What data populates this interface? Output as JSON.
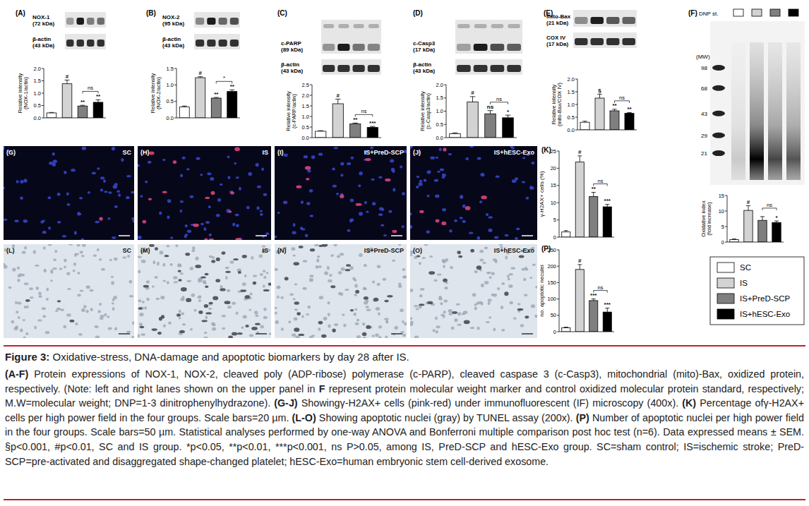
{
  "figure": {
    "label": "Figure 3:",
    "title": " Oxidative-stress, DNA-damage and apoptotic biomarkers by day 28 after IS.",
    "caption": [
      {
        "text": "(A-F)",
        "bold": true
      },
      {
        "text": " Protein expressions of NOX-1, NOX-2, cleaved poly (ADP-ribose) polymerase (c-PARP), cleaved caspase 3 (c-Casp3), mitochondrial (mito)-Bax, oxidized protein, respectively. (Note: left and right lanes shown on the upper panel in ",
        "bold": false
      },
      {
        "text": "F",
        "bold": true
      },
      {
        "text": " represent protein molecular weight marker and control oxidized molecular protein standard, respectively; M.W=molecular weight; DNP=1-3 dinitrophenylhydrazone). ",
        "bold": false
      },
      {
        "text": "(G-J)",
        "bold": true
      },
      {
        "text": " Showingγ-H2AX+ cells (pink-red) under immunofluorescent (IF) microscopy (400x). ",
        "bold": false
      },
      {
        "text": "(K)",
        "bold": true
      },
      {
        "text": " Percentage ofγ-H2AX+ cells per high power field in the four groups. Scale bars=20 µm. ",
        "bold": false
      },
      {
        "text": "(L-O)",
        "bold": true
      },
      {
        "text": " Showing apoptotic nuclei (gray) by TUNEL assay (200x). ",
        "bold": false
      },
      {
        "text": "(P)",
        "bold": true
      },
      {
        "text": " Number of apoptotic nuclei per high power field in the four groups. Scale bars=50 µm. Statistical analyses performed by one-way ANOVA and Bonferroni multiple comparison post hoc test (n=6). Data expressed means ± SEM. §p<0.001, #p<0.01, SC and IS group. *p<0.05, **p<0.01, ***p<0.001, ns P>0.05, among IS, PreD-SCP and hESC-Exo group. SC=sham control; IS=ischemic stroke; PreD-SCP=pre-activated and disaggregated shape-changed platelet; hESC-Exo=human embryonic stem cell-derived exosome.",
        "bold": false
      }
    ]
  },
  "legend": {
    "entries": [
      {
        "name": "SC",
        "color": "#ffffff"
      },
      {
        "name": "IS",
        "color": "#d3d3d3"
      },
      {
        "name": "IS+PreD-SCP",
        "color": "#7f7f7f"
      },
      {
        "name": "IS+hESC-Exo",
        "color": "#000000"
      }
    ]
  },
  "blots": [
    {
      "rows": [
        {
          "label": "NOX-1",
          "size": "(72 kDa)"
        },
        {
          "label": "β-actin",
          "size": "(43 kDa)"
        }
      ]
    },
    {
      "rows": [
        {
          "label": "NOX-2",
          "size": "(95 kDa)"
        },
        {
          "label": "β-actin",
          "size": "(43 kDa)"
        }
      ]
    },
    {
      "rows": [
        {
          "label": "c-PARP",
          "size": "(89 kDa)"
        },
        {
          "label": "β-actin",
          "size": "(43 kDa)"
        }
      ]
    },
    {
      "rows": [
        {
          "label": "c-Casp3",
          "size": "(17 kDa)"
        },
        {
          "label": "β-actin",
          "size": "(43 kDa)"
        }
      ]
    },
    {
      "rows": [
        {
          "label": "mito-Bax",
          "size": "(21 kDa)"
        },
        {
          "label": "COX IV",
          "size": "(17 kDa)"
        }
      ]
    }
  ],
  "gel": {
    "title": "(F)",
    "lane_label": "DNP st.",
    "mw_label": "(MW)",
    "mw": [
      98,
      68,
      43,
      29,
      21
    ]
  },
  "if_images": [
    {
      "title": "(G)",
      "label": "SC"
    },
    {
      "title": "(H)",
      "label": "IS"
    },
    {
      "title": "(I)",
      "label": "IS+PreD-SCP"
    },
    {
      "title": "(J)",
      "label": "IS+hESC-Exo"
    }
  ],
  "tunel_images": [
    {
      "title": "(L)",
      "label": "SC"
    },
    {
      "title": "(M)",
      "label": "IS"
    },
    {
      "title": "(N)",
      "label": "IS+PreD-SCP"
    },
    {
      "title": "(O)",
      "label": "IS+hESC-Exo"
    }
  ],
  "chart_data": [
    {
      "type": "bar",
      "title": "(A)",
      "y_label": "Relative intensity (NOX-1/actin)",
      "categories": [
        "SC",
        "IS",
        "IS+PreD-SCP",
        "IS+hESC-Exo"
      ],
      "values": [
        0.2,
        1.38,
        0.48,
        0.63
      ],
      "errors": [
        0.02,
        0.15,
        0.03,
        0.1
      ],
      "colors": [
        "#ffffff",
        "#d3d3d3",
        "#7f7f7f",
        "#000000"
      ],
      "ylim": [
        0,
        2
      ],
      "yticks": [
        {
          "value": 0,
          "label": "0.0"
        },
        {
          "value": 0.5,
          "label": "0.5"
        },
        {
          "value": 1,
          "label": "1.0"
        },
        {
          "value": 1.5,
          "label": "1.5"
        },
        {
          "value": 2,
          "label": "2.0"
        }
      ],
      "tick_labels": "y",
      "significance": [
        null,
        "#",
        "**",
        "**"
      ],
      "bracket": "ns"
    },
    {
      "type": "bar",
      "title": "(B)",
      "y_label": "Relative intensity (NOX-2/actin)",
      "categories": [
        "SC",
        "IS",
        "IS+PreD-SCP",
        "IS+hESC-Exo"
      ],
      "values": [
        0.33,
        1.22,
        0.6,
        0.8
      ],
      "errors": [
        0.03,
        0.03,
        0.02,
        0.05
      ],
      "colors": [
        "#ffffff",
        "#d3d3d3",
        "#7f7f7f",
        "#000000"
      ],
      "ylim": [
        0,
        1.5
      ],
      "yticks": [
        {
          "value": 0,
          "label": "0.0"
        },
        {
          "value": 0.5,
          "label": "0.5"
        },
        {
          "value": 1,
          "label": "1.0"
        },
        {
          "value": 1.5,
          "label": "1.5"
        }
      ],
      "tick_labels": "y",
      "significance": [
        null,
        "#",
        "**",
        "**"
      ],
      "bracket": "*"
    },
    {
      "type": "bar",
      "title": "(C)",
      "y_label": "Relative intensity (c-PARP/actin)",
      "categories": [
        "SC",
        "IS",
        "IS+PreD-SCP",
        "IS+hESC-Exo"
      ],
      "values": [
        0.3,
        1.6,
        0.65,
        0.48
      ],
      "errors": [
        0.03,
        0.22,
        0.04,
        0.05
      ],
      "colors": [
        "#ffffff",
        "#d3d3d3",
        "#7f7f7f",
        "#000000"
      ],
      "ylim": [
        0,
        2.5
      ],
      "yticks": [
        {
          "value": 0,
          "label": "0.0"
        },
        {
          "value": 0.5,
          "label": "0.5"
        },
        {
          "value": 1,
          "label": "1.0"
        },
        {
          "value": 1.5,
          "label": "1.5"
        },
        {
          "value": 2,
          "label": "2.0"
        },
        {
          "value": 2.5,
          "label": "2.5"
        }
      ],
      "tick_labels": "y",
      "significance": [
        null,
        "#",
        "**",
        "***"
      ],
      "bracket": "ns"
    },
    {
      "type": "bar",
      "title": "(D)",
      "y_label": "Relative intensity (c-Casp3/actin)",
      "categories": [
        "SC",
        "IS",
        "IS+PreD-SCP",
        "IS+hESC-Exo"
      ],
      "values": [
        0.15,
        1.35,
        0.9,
        0.75
      ],
      "errors": [
        0.03,
        0.2,
        0.12,
        0.1
      ],
      "colors": [
        "#ffffff",
        "#d3d3d3",
        "#7f7f7f",
        "#000000"
      ],
      "ylim": [
        0,
        2
      ],
      "yticks": [
        {
          "value": 0,
          "label": "0.0"
        },
        {
          "value": 0.5,
          "label": "0.5"
        },
        {
          "value": 1,
          "label": "1.0"
        },
        {
          "value": 1.5,
          "label": "1.5"
        },
        {
          "value": 2,
          "label": "2.0"
        }
      ],
      "tick_labels": "y",
      "significance": [
        null,
        "#",
        "ns",
        "*"
      ],
      "bracket": "ns"
    },
    {
      "type": "bar",
      "title": "(E)",
      "y_label": "Relative intensity (mito-Bax/COX IV)",
      "categories": [
        "SC",
        "IS",
        "IS+PreD-SCP",
        "IS+hESC-Exo"
      ],
      "values": [
        0.3,
        1.25,
        0.75,
        0.65
      ],
      "errors": [
        0.04,
        0.15,
        0.06,
        0.03
      ],
      "colors": [
        "#ffffff",
        "#d3d3d3",
        "#7f7f7f",
        "#000000"
      ],
      "ylim": [
        0,
        2
      ],
      "yticks": [
        {
          "value": 0,
          "label": "0.0"
        },
        {
          "value": 0.5,
          "label": "0.5"
        },
        {
          "value": 1,
          "label": "1.0"
        },
        {
          "value": 1.5,
          "label": "1.5"
        },
        {
          "value": 2,
          "label": "2.0"
        }
      ],
      "tick_labels": "y",
      "significance": [
        null,
        "§",
        "**",
        "**"
      ],
      "bracket": "ns"
    },
    {
      "type": "bar",
      "y_label": "Oxidative index (fold increase)",
      "categories": [
        "SC",
        "IS",
        "IS+PreD-SCP",
        "IS+hESC-Exo"
      ],
      "values": [
        0.8,
        10.2,
        7.0,
        6.3
      ],
      "errors": [
        0.2,
        1.5,
        1.2,
        0.5
      ],
      "colors": [
        "#ffffff",
        "#d3d3d3",
        "#7f7f7f",
        "#000000"
      ],
      "ylim": [
        0,
        15
      ],
      "yticks": [
        0,
        5,
        10,
        15
      ],
      "tick_labels": "y",
      "significance": [
        null,
        "#",
        null,
        "*"
      ],
      "bracket": "ns"
    },
    {
      "type": "bar",
      "title": "(K)",
      "y_label": "γ-H2AX+ cells (%)",
      "categories": [
        "SC",
        "IS",
        "IS+PreD-SCP",
        "IS+hESC-Exo"
      ],
      "values": [
        1.5,
        21.8,
        11.8,
        8.8
      ],
      "errors": [
        0.4,
        1.8,
        1.2,
        0.7
      ],
      "colors": [
        "#ffffff",
        "#d3d3d3",
        "#7f7f7f",
        "#000000"
      ],
      "ylim": [
        0,
        25
      ],
      "yticks": [
        0,
        5,
        10,
        15,
        20,
        25
      ],
      "tick_labels": "y",
      "significance": [
        null,
        "#",
        "**",
        "***"
      ],
      "bracket": "ns"
    },
    {
      "type": "bar",
      "title": "(P)",
      "y_label": "no. apoptotic neculei",
      "categories": [
        "SC",
        "IS",
        "IS+PreD-SCP",
        "IS+hESC-Exo"
      ],
      "values": [
        12,
        190,
        95,
        60
      ],
      "errors": [
        2,
        15,
        5,
        12
      ],
      "colors": [
        "#ffffff",
        "#d3d3d3",
        "#7f7f7f",
        "#000000"
      ],
      "ylim": [
        0,
        250
      ],
      "yticks": [
        0,
        50,
        100,
        150,
        200,
        250
      ],
      "tick_labels": "y",
      "significance": [
        null,
        "#",
        "***",
        "***"
      ],
      "bracket": "ns"
    }
  ]
}
